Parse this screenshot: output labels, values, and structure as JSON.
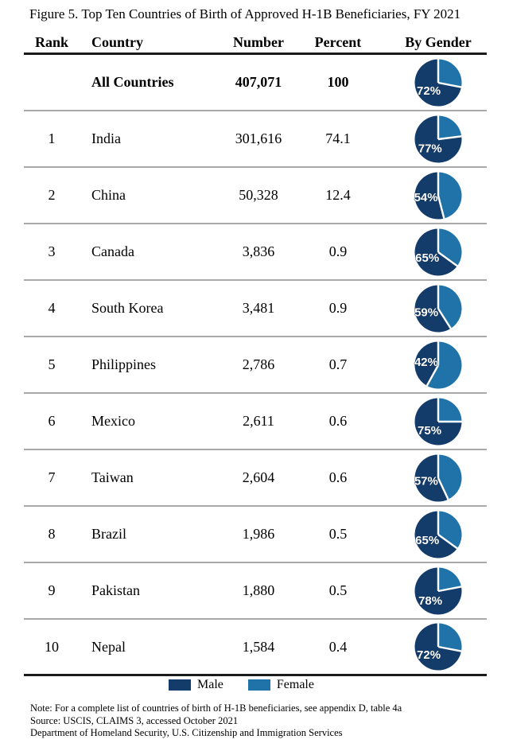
{
  "title": "Figure 5. Top Ten Countries of Birth of Approved H-1B Beneficiaries, FY 2021",
  "colors": {
    "male": "#143C6B",
    "female": "#1F73A8"
  },
  "table": {
    "columns": [
      "Rank",
      "Country",
      "Number",
      "Percent",
      "By Gender"
    ],
    "rows": [
      {
        "rank": "",
        "country": "All Countries",
        "number": "407,071",
        "percent": "100",
        "male_pct": 72,
        "bold": true
      },
      {
        "rank": "1",
        "country": "India",
        "number": "301,616",
        "percent": "74.1",
        "male_pct": 77
      },
      {
        "rank": "2",
        "country": "China",
        "number": "50,328",
        "percent": "12.4",
        "male_pct": 54
      },
      {
        "rank": "3",
        "country": "Canada",
        "number": "3,836",
        "percent": "0.9",
        "male_pct": 65
      },
      {
        "rank": "4",
        "country": "South Korea",
        "number": "3,481",
        "percent": "0.9",
        "male_pct": 59
      },
      {
        "rank": "5",
        "country": "Philippines",
        "number": "2,786",
        "percent": "0.7",
        "male_pct": 42
      },
      {
        "rank": "6",
        "country": "Mexico",
        "number": "2,611",
        "percent": "0.6",
        "male_pct": 75
      },
      {
        "rank": "7",
        "country": "Taiwan",
        "number": "2,604",
        "percent": "0.6",
        "male_pct": 57
      },
      {
        "rank": "8",
        "country": "Brazil",
        "number": "1,986",
        "percent": "0.5",
        "male_pct": 65
      },
      {
        "rank": "9",
        "country": "Pakistan",
        "number": "1,880",
        "percent": "0.5",
        "male_pct": 78
      },
      {
        "rank": "10",
        "country": "Nepal",
        "number": "1,584",
        "percent": "0.4",
        "male_pct": 72
      }
    ]
  },
  "legend": {
    "male": "Male",
    "female": "Female"
  },
  "notes": {
    "note": "Note: For a complete list of countries of birth of H-1B beneficiaries, see appendix D, table 4a",
    "source": "Source: USCIS, CLAIMS 3, accessed October 2021",
    "department": "Department of Homeland Security, U.S. Citizenship and Immigration Services"
  },
  "chart_data": {
    "type": "table",
    "title": "Figure 5. Top Ten Countries of Birth of Approved H-1B Beneficiaries, FY 2021",
    "columns": [
      "Rank",
      "Country",
      "Number",
      "Percent",
      "By Gender"
    ],
    "rows": [
      {
        "rank": null,
        "country": "All Countries",
        "number": 407071,
        "percent": 100,
        "gender_pie": {
          "male_pct": 72,
          "female_pct": 28
        }
      },
      {
        "rank": 1,
        "country": "India",
        "number": 301616,
        "percent": 74.1,
        "gender_pie": {
          "male_pct": 77,
          "female_pct": 23
        }
      },
      {
        "rank": 2,
        "country": "China",
        "number": 50328,
        "percent": 12.4,
        "gender_pie": {
          "male_pct": 54,
          "female_pct": 46
        }
      },
      {
        "rank": 3,
        "country": "Canada",
        "number": 3836,
        "percent": 0.9,
        "gender_pie": {
          "male_pct": 65,
          "female_pct": 35
        }
      },
      {
        "rank": 4,
        "country": "South Korea",
        "number": 3481,
        "percent": 0.9,
        "gender_pie": {
          "male_pct": 59,
          "female_pct": 41
        }
      },
      {
        "rank": 5,
        "country": "Philippines",
        "number": 2786,
        "percent": 0.7,
        "gender_pie": {
          "male_pct": 42,
          "female_pct": 58
        }
      },
      {
        "rank": 6,
        "country": "Mexico",
        "number": 2611,
        "percent": 0.6,
        "gender_pie": {
          "male_pct": 75,
          "female_pct": 25
        }
      },
      {
        "rank": 7,
        "country": "Taiwan",
        "number": 2604,
        "percent": 0.6,
        "gender_pie": {
          "male_pct": 57,
          "female_pct": 43
        }
      },
      {
        "rank": 8,
        "country": "Brazil",
        "number": 1986,
        "percent": 0.5,
        "gender_pie": {
          "male_pct": 65,
          "female_pct": 35
        }
      },
      {
        "rank": 9,
        "country": "Pakistan",
        "number": 1880,
        "percent": 0.5,
        "gender_pie": {
          "male_pct": 78,
          "female_pct": 22
        }
      },
      {
        "rank": 10,
        "country": "Nepal",
        "number": 1584,
        "percent": 0.4,
        "gender_pie": {
          "male_pct": 72,
          "female_pct": 28
        }
      }
    ],
    "legend": [
      "Male",
      "Female"
    ],
    "legend_position": "bottom-center",
    "pie_type": "pie",
    "pie_start_angle_deg": 0,
    "pie_direction": "clockwise-female-first",
    "pie_colors": {
      "male": "#143C6B",
      "female": "#1F73A8"
    },
    "pie_label": "male_pct"
  }
}
